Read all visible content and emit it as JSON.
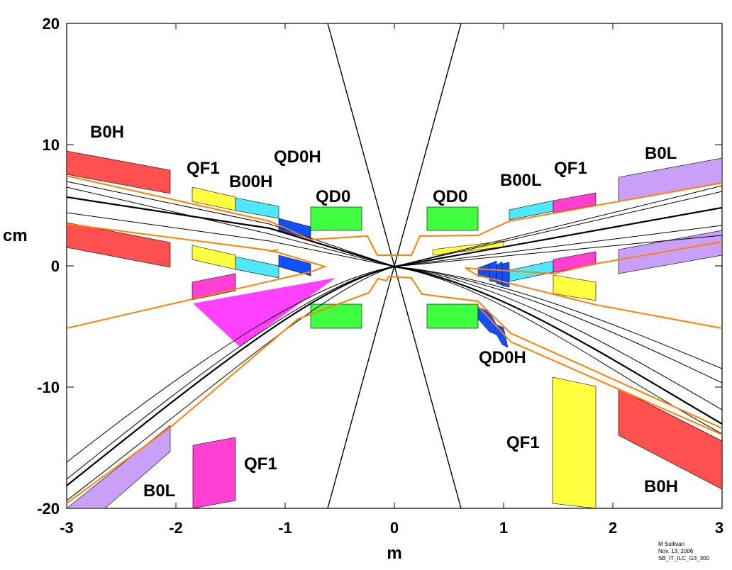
{
  "chart_data": {
    "type": "diagram",
    "title": "",
    "xlabel": "m",
    "ylabel": "cm",
    "xlim": [
      -3,
      3
    ],
    "ylim": [
      -20,
      20
    ],
    "x_ticks": [
      "-3",
      "-2",
      "-1",
      "0",
      "1",
      "2",
      "3"
    ],
    "y_ticks": [
      "-20",
      "-10",
      "0",
      "10",
      "20"
    ],
    "magnet_labels": {
      "b0h_left": "B0H",
      "qf1_left_top": "QF1",
      "b00h_left": "B00H",
      "qd0h_left": "QD0H",
      "qd0_left": "QD0",
      "qd0_right": "QD0",
      "b00l_right": "B00L",
      "qf1_right_top": "QF1",
      "b0l_right": "B0L",
      "qd0h_right": "QD0H",
      "qf1_right_bottom": "QF1",
      "b0h_right": "B0H",
      "qf1_left_bottom": "QF1",
      "b0l_left": "B0L"
    },
    "credit": [
      "M Sullivan",
      "Nov. 13, 2006",
      "SB_IT_ILC_G3_300"
    ],
    "colors": {
      "b0h": "#ff5050",
      "b0l": "#c8a0f8",
      "qf1": "#ffff40",
      "qf1_magenta": "#ff40d0",
      "b00": "#50e8f8",
      "qd0h": "#1050ff",
      "qd0": "#40ff40",
      "envelope": "#ff8000",
      "fan": "#ff40ff"
    }
  }
}
